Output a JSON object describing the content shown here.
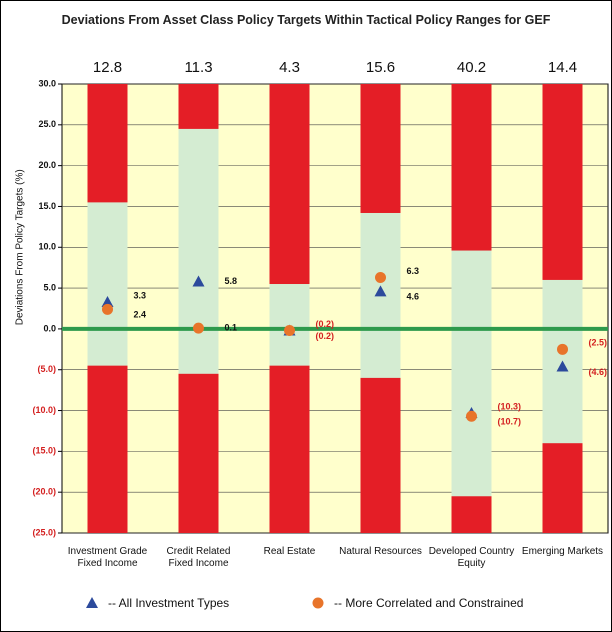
{
  "chart_data": {
    "type": "range_bar",
    "title": "Deviations From Asset Class Policy Targets Within Tactical Policy Ranges for GEF",
    "ylabel": "Deviations From Policy Targets (%)",
    "categories": [
      "Investment Grade Fixed Income",
      "Credit Related Fixed Income",
      "Real Estate",
      "Natural Resources",
      "Developed Country Equity",
      "Emerging Markets"
    ],
    "totals": [
      12.8,
      11.3,
      4.3,
      15.6,
      40.2,
      14.4
    ],
    "range_upper": [
      15.5,
      24.5,
      5.5,
      14.2,
      9.6,
      6.0
    ],
    "range_lower": [
      -4.5,
      -5.5,
      -4.5,
      -6.0,
      -20.5,
      -14.0
    ],
    "range_color": "#d4ecd2",
    "outside_color": "#e41e26",
    "plot_background": "#ffffcc",
    "zero_line_color": "#2e9a4c",
    "series": [
      {
        "name": "-- All Investment Types",
        "color": "#2c4a9c",
        "marker": "triangle",
        "values": [
          3.3,
          5.8,
          -0.2,
          4.6,
          -10.3,
          -4.6
        ],
        "value_labels": [
          "3.3",
          "5.8",
          "(0.2)",
          "4.6",
          "(10.3)",
          "(4.6)"
        ]
      },
      {
        "name": "-- More Correlated and Constrained",
        "color": "#e8742a",
        "marker": "circle",
        "values": [
          2.4,
          0.1,
          -0.2,
          6.3,
          -10.7,
          -2.5
        ],
        "value_labels": [
          "2.4",
          "0.1",
          "(0.2)",
          "6.3",
          "(10.7)",
          "(2.5)"
        ]
      }
    ],
    "ylim": [
      -25,
      30
    ],
    "yticks": [
      {
        "value": 30,
        "label": "30.0"
      },
      {
        "value": 25,
        "label": "25.0"
      },
      {
        "value": 20,
        "label": "20.0"
      },
      {
        "value": 15,
        "label": "15.0"
      },
      {
        "value": 10,
        "label": "10.0"
      },
      {
        "value": 5,
        "label": "5.0"
      },
      {
        "value": 0,
        "label": "0.0"
      },
      {
        "value": -5,
        "label": "(5.0)"
      },
      {
        "value": -10,
        "label": "(10.0)"
      },
      {
        "value": -15,
        "label": "(15.0)"
      },
      {
        "value": -20,
        "label": "(20.0)"
      },
      {
        "value": -25,
        "label": "(25.0)"
      }
    ],
    "grid": true
  }
}
